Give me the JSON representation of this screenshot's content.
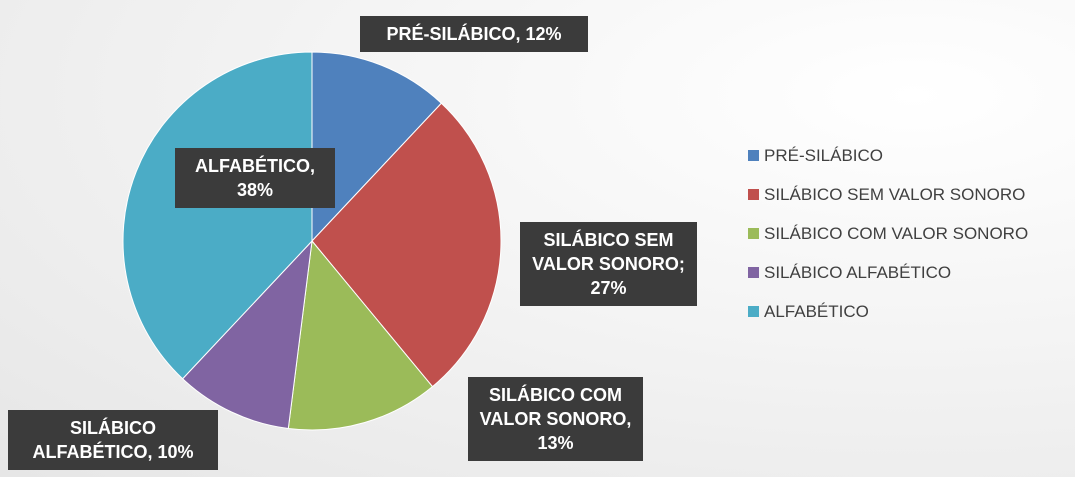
{
  "chart_data": {
    "type": "pie",
    "categories": [
      "PRÉ-SILÁBICO",
      "SILÁBICO SEM VALOR SONORO",
      "SILÁBICO COM VALOR SONORO",
      "SILÁBICO ALFABÉTICO",
      "ALFABÉTICO"
    ],
    "values": [
      12,
      27,
      13,
      10,
      38
    ],
    "value_labels": [
      "PRÉ-SILÁBICO, 12%",
      "SILÁBICO SEM VALOR SONORO; 27%",
      "SILÁBICO COM VALOR SONORO, 13%",
      "SILÁBICO ALFABÉTICO, 10%",
      "ALFABÉTICO, 38%"
    ],
    "colors": [
      "#4f81bd",
      "#c0504d",
      "#9bbb59",
      "#8064a2",
      "#4bacc6"
    ],
    "legend": "right"
  }
}
